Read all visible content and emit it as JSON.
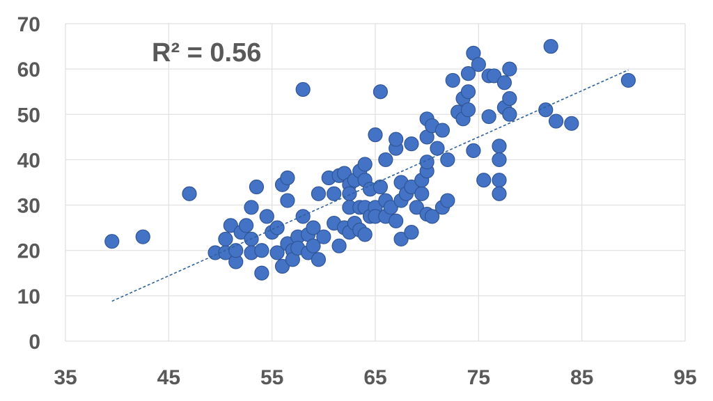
{
  "chart_data": {
    "type": "scatter",
    "title": "",
    "xlabel": "",
    "ylabel": "",
    "xlim": [
      35,
      95
    ],
    "ylim": [
      0,
      70
    ],
    "xticks": [
      "35",
      "45",
      "55",
      "65",
      "75",
      "85",
      "95"
    ],
    "yticks": [
      "0",
      "10",
      "20",
      "30",
      "40",
      "50",
      "60",
      "70"
    ],
    "grid": true,
    "annotation": "R² = 0.56",
    "point_color": "#4472c4",
    "trendline": {
      "x": [
        39.5,
        89.5
      ],
      "y": [
        8.8,
        59.8
      ],
      "style": "dashed",
      "color": "#2e5f9e"
    },
    "points": [
      [
        39.5,
        22
      ],
      [
        42.5,
        23
      ],
      [
        47,
        32.5
      ],
      [
        49.5,
        19.5
      ],
      [
        50.5,
        22.5
      ],
      [
        50.5,
        19.5
      ],
      [
        51,
        25.5
      ],
      [
        51.5,
        17.5
      ],
      [
        51.5,
        20
      ],
      [
        52,
        24
      ],
      [
        52.5,
        25.5
      ],
      [
        53,
        29.5
      ],
      [
        53,
        22.5
      ],
      [
        53.5,
        34
      ],
      [
        53,
        19.5
      ],
      [
        54,
        20
      ],
      [
        54,
        15
      ],
      [
        54.5,
        27.5
      ],
      [
        55,
        24
      ],
      [
        55.5,
        25
      ],
      [
        55.5,
        19.5
      ],
      [
        56,
        34.5
      ],
      [
        56.5,
        36
      ],
      [
        56.5,
        31
      ],
      [
        56,
        16.5
      ],
      [
        56.5,
        21.5
      ],
      [
        57,
        20
      ],
      [
        57,
        18
      ],
      [
        57.5,
        23
      ],
      [
        57.5,
        20.5
      ],
      [
        58,
        27.5
      ],
      [
        58,
        55.5
      ],
      [
        58.5,
        23.5
      ],
      [
        58.5,
        19.5
      ],
      [
        59,
        25
      ],
      [
        59,
        21
      ],
      [
        59.5,
        32.5
      ],
      [
        59.5,
        18
      ],
      [
        60,
        23
      ],
      [
        60.5,
        36
      ],
      [
        61,
        32.5
      ],
      [
        61,
        26
      ],
      [
        61.5,
        36.5
      ],
      [
        61.5,
        21
      ],
      [
        62,
        37
      ],
      [
        62,
        25
      ],
      [
        62.5,
        34.5
      ],
      [
        62.5,
        32.5
      ],
      [
        62.5,
        29.5
      ],
      [
        62.5,
        24
      ],
      [
        63,
        26
      ],
      [
        63,
        35.5
      ],
      [
        63.5,
        37.5
      ],
      [
        63.5,
        29.5
      ],
      [
        63.5,
        24.5
      ],
      [
        64,
        39
      ],
      [
        64,
        35.5
      ],
      [
        64,
        29.5
      ],
      [
        64,
        23.5
      ],
      [
        64.5,
        33.5
      ],
      [
        64.5,
        27.5
      ],
      [
        65,
        45.5
      ],
      [
        65,
        29.5
      ],
      [
        65,
        27.5
      ],
      [
        65.5,
        34
      ],
      [
        65.5,
        55
      ],
      [
        66,
        40
      ],
      [
        66,
        31
      ],
      [
        66,
        27.5
      ],
      [
        66.5,
        29.5
      ],
      [
        67,
        42.5
      ],
      [
        67,
        44.5
      ],
      [
        67,
        26.5
      ],
      [
        67.5,
        35
      ],
      [
        67.5,
        31
      ],
      [
        67.5,
        22.5
      ],
      [
        68,
        32.5
      ],
      [
        68.5,
        43.5
      ],
      [
        68.5,
        34
      ],
      [
        68.5,
        24
      ],
      [
        69,
        29.5
      ],
      [
        69.5,
        32.5
      ],
      [
        69.5,
        35.5
      ],
      [
        70,
        37.5
      ],
      [
        70,
        39.5
      ],
      [
        70,
        45
      ],
      [
        70,
        49
      ],
      [
        70.5,
        47.5
      ],
      [
        70,
        28
      ],
      [
        70.5,
        27.5
      ],
      [
        71,
        42.5
      ],
      [
        71.5,
        29.5
      ],
      [
        71.5,
        46.5
      ],
      [
        72,
        31
      ],
      [
        72,
        40
      ],
      [
        72.5,
        57.5
      ],
      [
        73,
        50.5
      ],
      [
        73.5,
        53.5
      ],
      [
        73.5,
        49
      ],
      [
        74,
        55
      ],
      [
        74,
        59
      ],
      [
        74,
        51
      ],
      [
        74.5,
        42
      ],
      [
        74.5,
        63.5
      ],
      [
        75,
        61
      ],
      [
        75.5,
        35.5
      ],
      [
        76,
        58.5
      ],
      [
        76,
        49.5
      ],
      [
        76.5,
        58.5
      ],
      [
        77,
        43
      ],
      [
        77,
        40
      ],
      [
        77,
        35.5
      ],
      [
        77,
        32.5
      ],
      [
        77.5,
        51.5
      ],
      [
        77.5,
        57
      ],
      [
        78,
        60
      ],
      [
        78,
        53.5
      ],
      [
        78,
        50
      ],
      [
        81.5,
        51
      ],
      [
        82,
        65
      ],
      [
        82.5,
        48.5
      ],
      [
        84,
        48
      ],
      [
        89.5,
        57.5
      ]
    ]
  }
}
